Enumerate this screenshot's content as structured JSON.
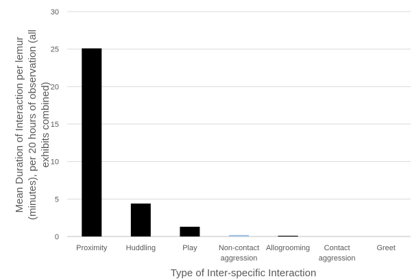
{
  "chart_data": {
    "type": "bar",
    "categories": [
      "Proximity",
      "Huddling",
      "Play",
      "Non-contact aggression",
      "Allogrooming",
      "Contact aggression",
      "Greet"
    ],
    "category_label_lines": [
      [
        "Proximity"
      ],
      [
        "Huddling"
      ],
      [
        "Play"
      ],
      [
        "Non-contact",
        "aggression"
      ],
      [
        "Allogrooming"
      ],
      [
        "Contact",
        "aggression"
      ],
      [
        "Greet"
      ]
    ],
    "values": [
      25.1,
      4.4,
      1.3,
      0.2,
      0.1,
      0,
      0
    ],
    "bar_colors": [
      "#000000",
      "#000000",
      "#000000",
      "#9dc3e6",
      "#000000",
      "#000000",
      "#000000"
    ],
    "ylim": [
      0,
      30
    ],
    "yticks": [
      0,
      5,
      10,
      15,
      20,
      25,
      30
    ],
    "xlabel": "Type of Inter-specific Interaction",
    "ylabel_lines": [
      "Mean Duration of Interaction per lemur",
      "(minutes), per 20 hours of observation (all",
      "exhibits combined)"
    ],
    "grid": "horizontal",
    "gridline_color": "#d9d9d9",
    "text_color": "#595959"
  }
}
